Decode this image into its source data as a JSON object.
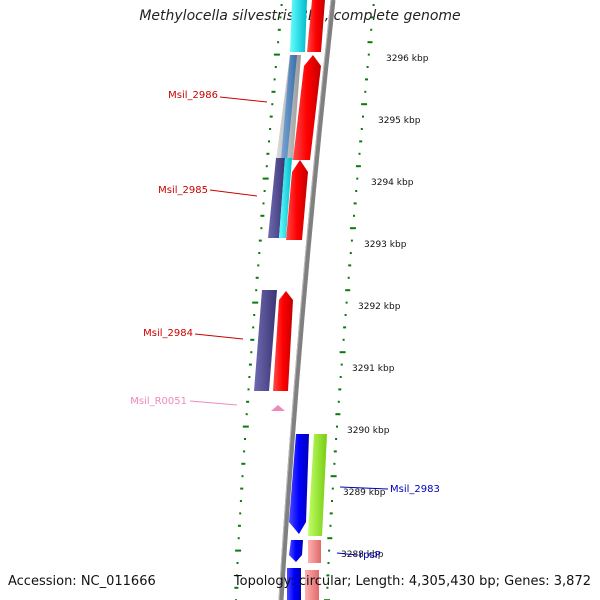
{
  "map": {
    "title": "Methylocella silvestris BL2, complete genome",
    "accession": "Accession: NC_011666",
    "summary": "Topology: circular; Length: 4,305,430 bp; Genes: 3,872"
  },
  "ticks": [
    "3296 kbp",
    "3295 kbp",
    "3294 kbp",
    "3293 kbp",
    "3292 kbp",
    "3291 kbp",
    "3290 kbp",
    "3289 kbp",
    "3288 kbp"
  ],
  "gene_labels": [
    "Msil_2986",
    "Msil_2985",
    "Msil_2984",
    "Msil_R0051",
    "Msil_2983",
    "rpsP"
  ],
  "colors": {
    "backbone": "#808080",
    "forward_cds": "#ff0000",
    "reverse_cds": "#0000ff",
    "cog_cyan": "#00e5e5",
    "cog_slate": "#4f4a8f",
    "cog_lime": "#99ee22",
    "cog_pink": "#f08a8a",
    "rna": "#ee88bb",
    "gc_skew": "#0a7a0a",
    "label_red": "#cc0000",
    "label_blue": "#0000bb",
    "label_pink": "#ee88bb"
  }
}
